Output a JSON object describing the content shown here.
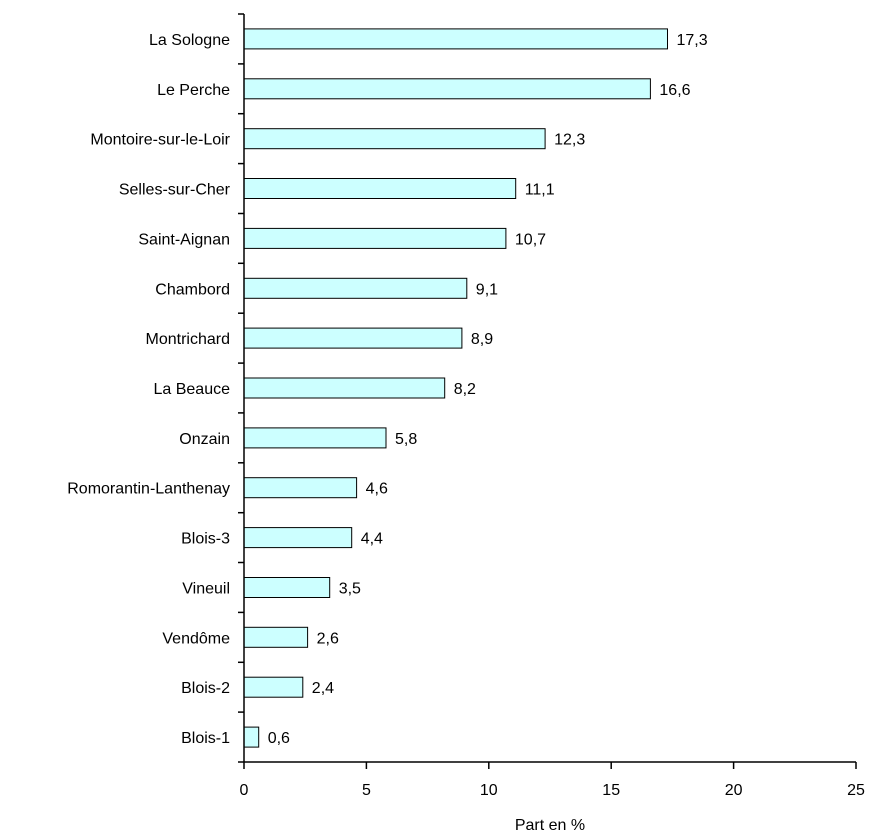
{
  "chart_data": {
    "type": "bar",
    "orientation": "horizontal",
    "categories": [
      "La Sologne",
      "Le Perche",
      "Montoire-sur-le-Loir",
      "Selles-sur-Cher",
      "Saint-Aignan",
      "Chambord",
      "Montrichard",
      "La Beauce",
      "Onzain",
      "Romorantin-Lanthenay",
      "Blois-3",
      "Vineuil",
      "Vendôme",
      "Blois-2",
      "Blois-1"
    ],
    "values": [
      17.3,
      16.6,
      12.3,
      11.1,
      10.7,
      9.1,
      8.9,
      8.2,
      5.8,
      4.6,
      4.4,
      3.5,
      2.6,
      2.4,
      0.6
    ],
    "value_labels": [
      "17,3",
      "16,6",
      "12,3",
      "11,1",
      "10,7",
      "9,1",
      "8,9",
      "8,2",
      "5,8",
      "4,6",
      "4,4",
      "3,5",
      "2,6",
      "2,4",
      "0,6"
    ],
    "xlabel": "Part en %",
    "xlim": [
      0,
      25
    ],
    "xticks": [
      0,
      5,
      10,
      15,
      20,
      25
    ],
    "grid": false,
    "bar_color": "#ccffff"
  }
}
